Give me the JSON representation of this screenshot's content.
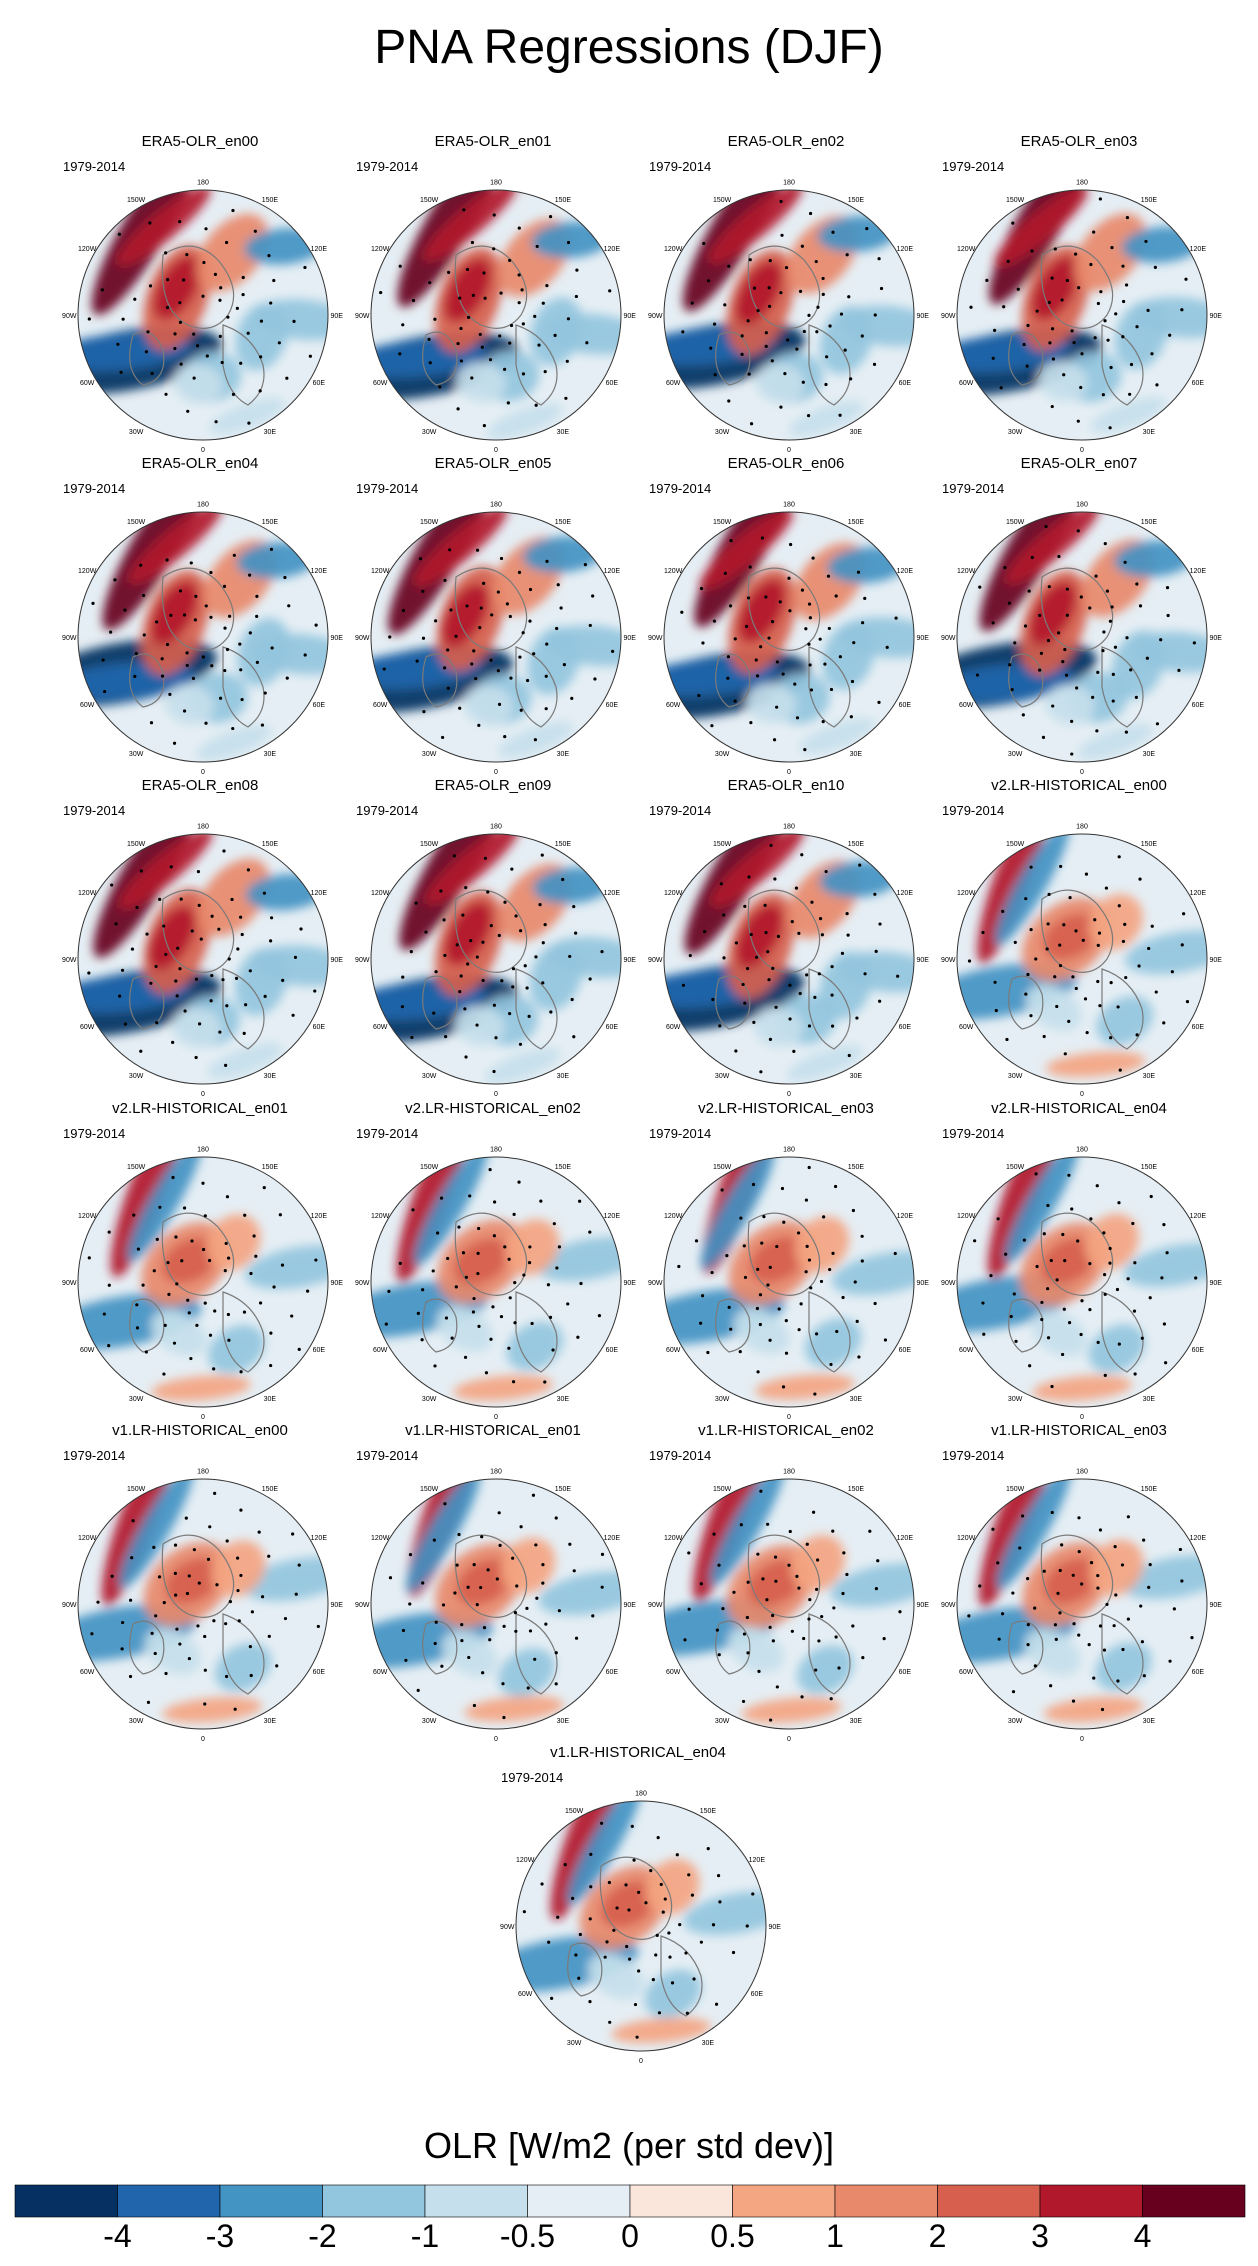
{
  "title": "PNA Regressions (DJF)",
  "period_label": "1979-2014",
  "panels": [
    {
      "name": "ERA5-OLR_en00",
      "pattern": "era5"
    },
    {
      "name": "ERA5-OLR_en01",
      "pattern": "era5"
    },
    {
      "name": "ERA5-OLR_en02",
      "pattern": "era5"
    },
    {
      "name": "ERA5-OLR_en03",
      "pattern": "era5"
    },
    {
      "name": "ERA5-OLR_en04",
      "pattern": "era5"
    },
    {
      "name": "ERA5-OLR_en05",
      "pattern": "era5"
    },
    {
      "name": "ERA5-OLR_en06",
      "pattern": "era5"
    },
    {
      "name": "ERA5-OLR_en07",
      "pattern": "era5"
    },
    {
      "name": "ERA5-OLR_en08",
      "pattern": "era5"
    },
    {
      "name": "ERA5-OLR_en09",
      "pattern": "era5"
    },
    {
      "name": "ERA5-OLR_en10",
      "pattern": "era5"
    },
    {
      "name": "v2.LR-HISTORICAL_en00",
      "pattern": "model"
    },
    {
      "name": "v2.LR-HISTORICAL_en01",
      "pattern": "model"
    },
    {
      "name": "v2.LR-HISTORICAL_en02",
      "pattern": "model"
    },
    {
      "name": "v2.LR-HISTORICAL_en03",
      "pattern": "model"
    },
    {
      "name": "v2.LR-HISTORICAL_en04",
      "pattern": "model"
    },
    {
      "name": "v1.LR-HISTORICAL_en00",
      "pattern": "model"
    },
    {
      "name": "v1.LR-HISTORICAL_en01",
      "pattern": "model"
    },
    {
      "name": "v1.LR-HISTORICAL_en02",
      "pattern": "model"
    },
    {
      "name": "v1.LR-HISTORICAL_en03",
      "pattern": "model"
    },
    {
      "name": "v1.LR-HISTORICAL_en04",
      "pattern": "model"
    }
  ],
  "longitude_labels": [
    "180",
    "150E",
    "120E",
    "90E",
    "60E",
    "30E",
    "0",
    "30W",
    "60W",
    "90W",
    "120W",
    "150W"
  ],
  "colorbar": {
    "title": "OLR [W/m2 (per std dev)]",
    "colors": [
      "#053061",
      "#2166ac",
      "#4393c3",
      "#92c5de",
      "#c5dfec",
      "#e5eef4",
      "#fbe6dc",
      "#f4a582",
      "#e8896b",
      "#d6604d",
      "#b2182b",
      "#67001f"
    ],
    "tick_labels": [
      "-4",
      "-3",
      "-2",
      "-1",
      "-0.5",
      "0",
      "0.5",
      "1",
      "2",
      "3",
      "4"
    ]
  },
  "colors": {
    "land_outline": "#7a7a7a",
    "stipple": "#000000",
    "background": "#ffffff"
  }
}
